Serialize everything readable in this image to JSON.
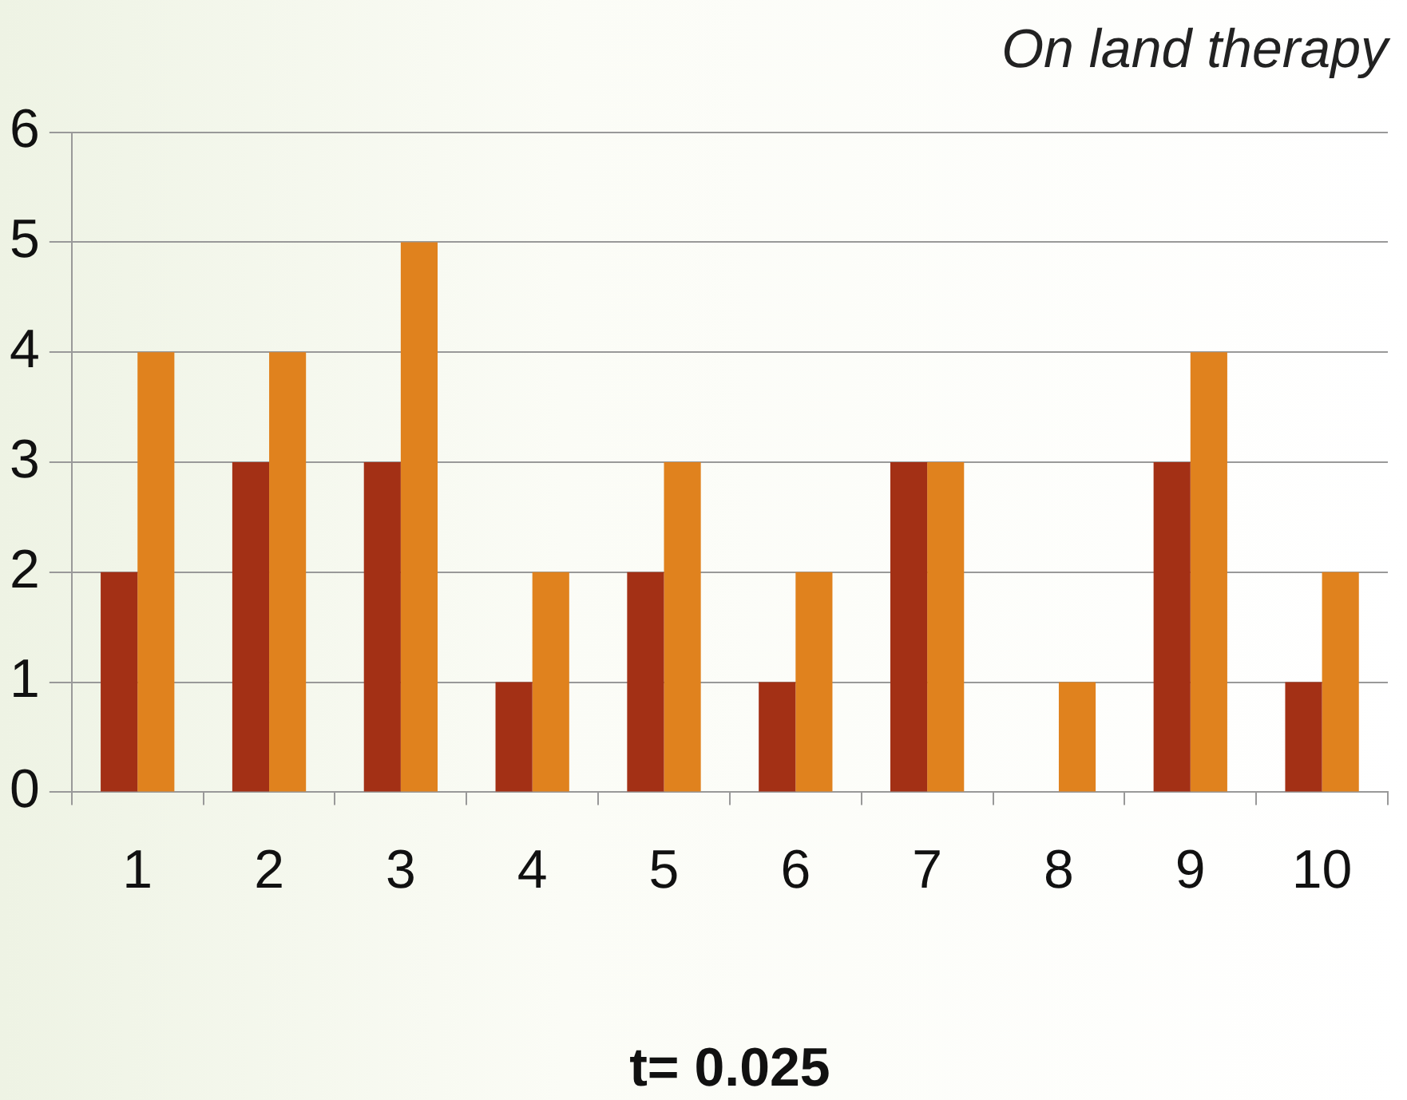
{
  "chart_data": {
    "type": "bar",
    "title": "On land therapy",
    "annotations": [
      "t= 0.025"
    ],
    "categories": [
      "1",
      "2",
      "3",
      "4",
      "5",
      "6",
      "7",
      "8",
      "9",
      "10"
    ],
    "series": [
      {
        "color": "#a33015",
        "values": [
          2,
          3,
          3,
          1,
          2,
          1,
          3,
          0,
          3,
          1
        ]
      },
      {
        "color": "#e0821e",
        "values": [
          4,
          4,
          5,
          2,
          3,
          2,
          3,
          1,
          4,
          2
        ]
      }
    ],
    "ylim": [
      0,
      6
    ],
    "yticks": [
      0,
      1,
      2,
      3,
      4,
      5,
      6
    ],
    "grid": "y",
    "legend": false
  }
}
